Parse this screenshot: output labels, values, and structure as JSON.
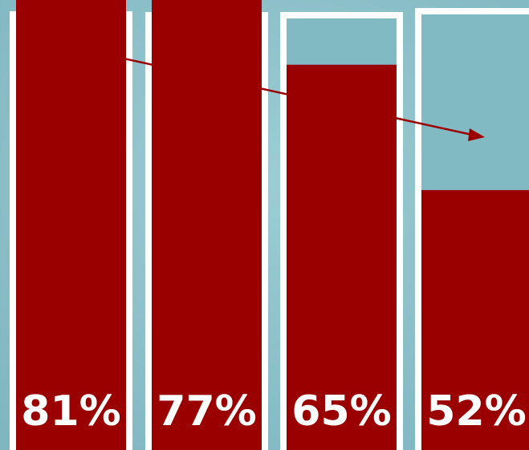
{
  "colors": {
    "background": "#8fc3cc",
    "bar_fill": "#9b0000",
    "column_top": "#82bac4",
    "frame": "#ffffff",
    "trend_arrow": "#9b0000"
  },
  "chart_data": {
    "type": "bar",
    "categories": [
      "",
      "",
      "",
      ""
    ],
    "values": [
      81,
      77,
      65,
      52
    ],
    "labels": [
      "81%",
      "77%",
      "65%",
      "52%"
    ],
    "ylim": [
      0,
      100
    ],
    "unit": "%",
    "grid": false,
    "legend": "none",
    "trend_arrow": "downward"
  }
}
